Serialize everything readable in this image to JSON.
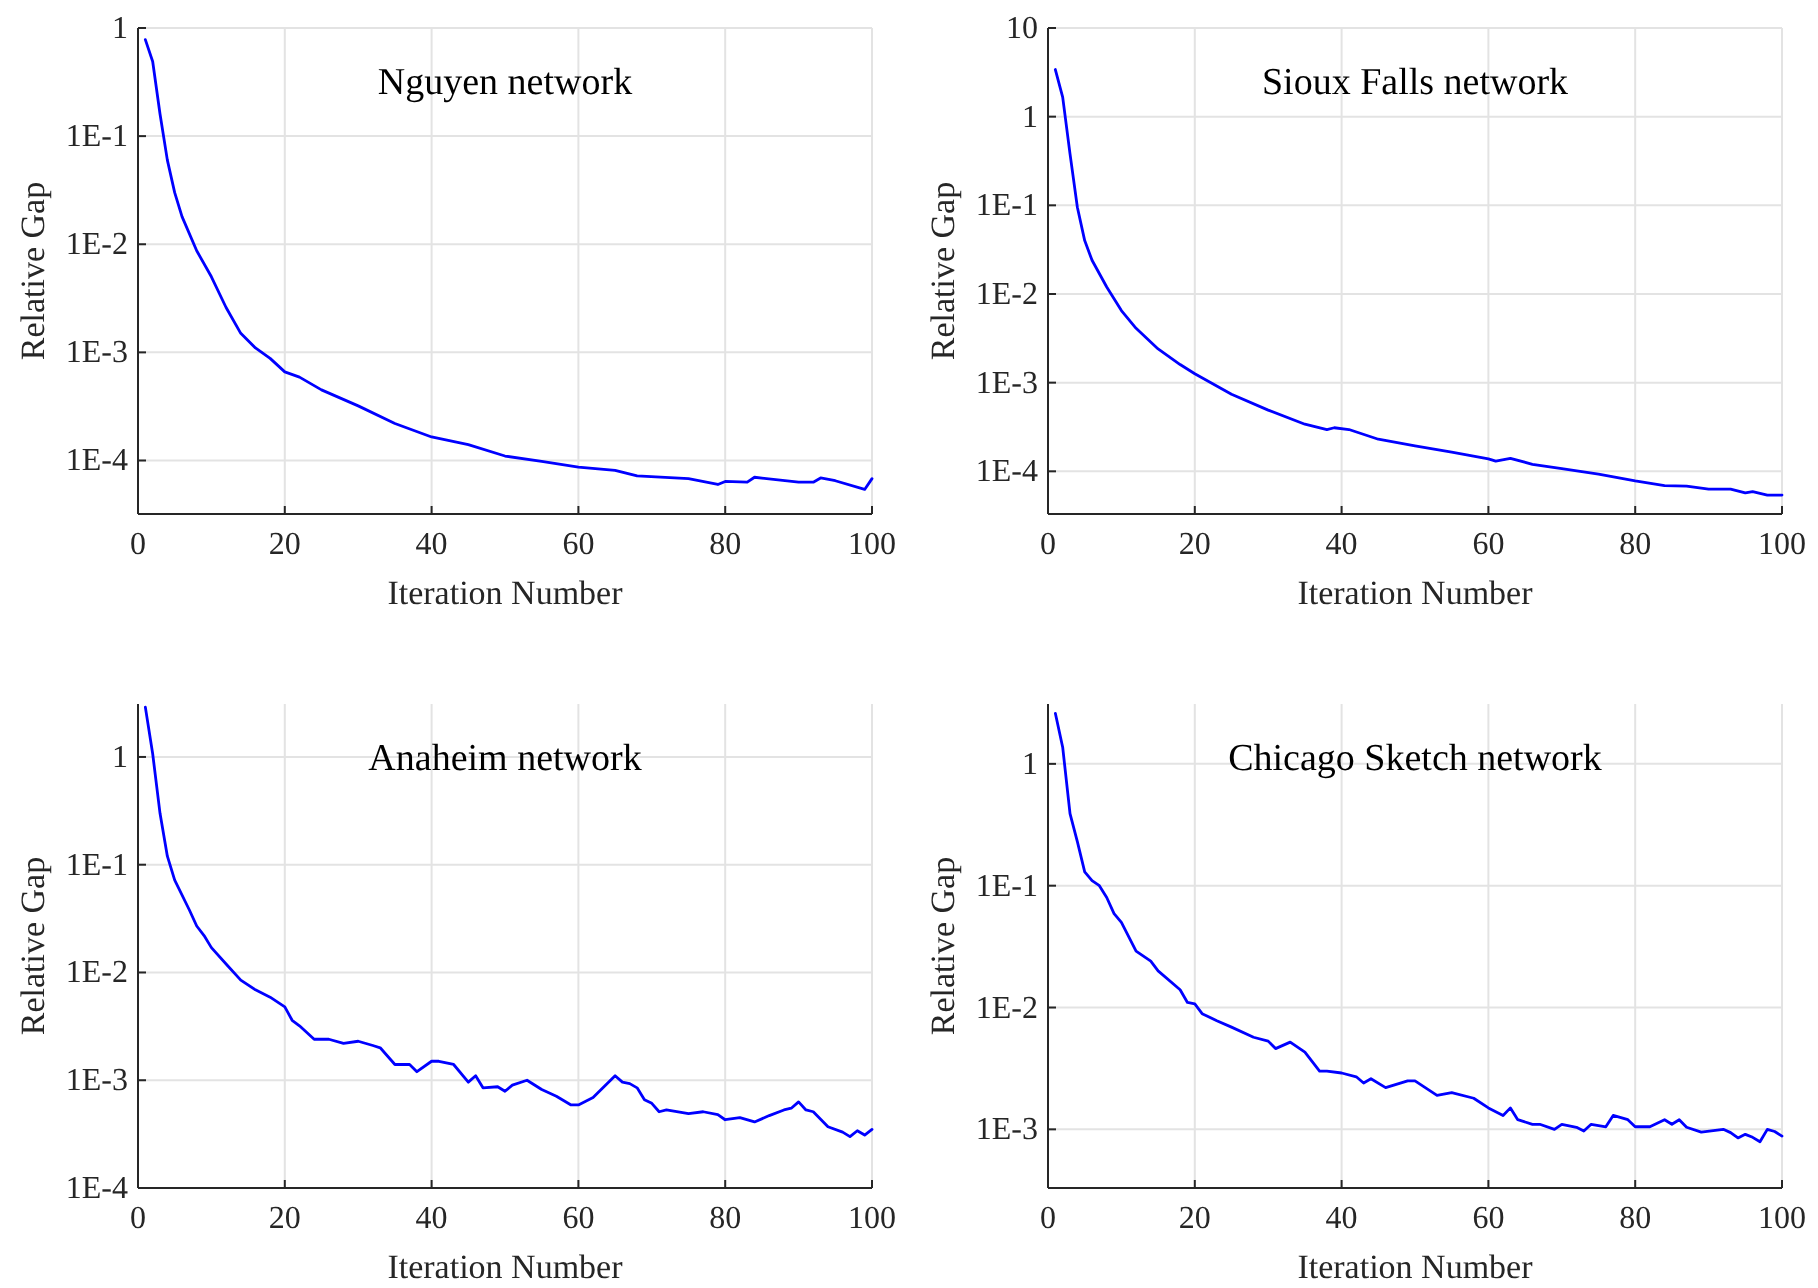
{
  "chart_data": [
    {
      "type": "line",
      "title": "Nguyen network",
      "xlabel": "Iteration Number",
      "ylabel": "Relative Gap",
      "xlim": [
        0,
        100
      ],
      "xticks": [
        0,
        20,
        40,
        60,
        80,
        100
      ],
      "ylim": [
        3.2e-05,
        1
      ],
      "yticks": [
        {
          "value": 0.0001,
          "label": "1E-4"
        },
        {
          "value": 0.001,
          "label": "1E-3"
        },
        {
          "value": 0.01,
          "label": "1E-2"
        },
        {
          "value": 0.1,
          "label": "1E-1"
        },
        {
          "value": 1,
          "label": "1"
        }
      ],
      "log": true,
      "grid": true,
      "x": [
        1,
        2,
        3,
        4,
        5,
        6,
        8,
        10,
        12,
        14,
        16,
        18,
        20,
        22,
        25,
        30,
        35,
        40,
        45,
        50,
        55,
        60,
        65,
        68,
        75,
        79,
        80,
        83,
        84,
        90,
        92,
        93,
        95,
        99,
        100
      ],
      "series": [
        {
          "color": "#0000ff",
          "values": [
            0.78,
            0.49,
            0.16,
            0.06,
            0.03,
            0.018,
            0.0087,
            0.005,
            0.0026,
            0.0015,
            0.0011,
            0.00088,
            0.00066,
            0.00059,
            0.00045,
            0.00032,
            0.00022,
            0.000165,
            0.00014,
            0.00011,
            9.8e-05,
            8.7e-05,
            8.1e-05,
            7.2e-05,
            6.8e-05,
            6e-05,
            6.4e-05,
            6.3e-05,
            7e-05,
            6.3e-05,
            6.3e-05,
            6.9e-05,
            6.5e-05,
            5.4e-05,
            6.8e-05
          ]
        }
      ]
    },
    {
      "type": "line",
      "title": "Sioux Falls network",
      "xlabel": "Iteration Number",
      "ylabel": "Relative Gap",
      "xlim": [
        0,
        100
      ],
      "xticks": [
        0,
        20,
        40,
        60,
        80,
        100
      ],
      "ylim": [
        3.3e-05,
        10
      ],
      "yticks": [
        {
          "value": 0.0001,
          "label": "1E-4"
        },
        {
          "value": 0.001,
          "label": "1E-3"
        },
        {
          "value": 0.01,
          "label": "1E-2"
        },
        {
          "value": 0.1,
          "label": "1E-1"
        },
        {
          "value": 1,
          "label": "1"
        },
        {
          "value": 10,
          "label": "10"
        }
      ],
      "log": true,
      "grid": true,
      "x": [
        1,
        2,
        3,
        4,
        5,
        6,
        8,
        10,
        12,
        15,
        18,
        20,
        25,
        30,
        35,
        38,
        39,
        41,
        45,
        50,
        55,
        60,
        61,
        63,
        66,
        70,
        75,
        80,
        84,
        87,
        90,
        93,
        95,
        96,
        98,
        100
      ],
      "series": [
        {
          "color": "#0000ff",
          "values": [
            3.4,
            1.66,
            0.38,
            0.095,
            0.04,
            0.024,
            0.012,
            0.0065,
            0.0041,
            0.0024,
            0.0016,
            0.00126,
            0.00074,
            0.00049,
            0.00034,
            0.000296,
            0.00031,
            0.000296,
            0.00023,
            0.000194,
            0.000165,
            0.000138,
            0.00013,
            0.00014,
            0.00012,
            0.000107,
            9.3e-05,
            7.8e-05,
            6.9e-05,
            6.8e-05,
            6.3e-05,
            6.3e-05,
            5.7e-05,
            5.9e-05,
            5.4e-05,
            5.4e-05
          ]
        }
      ]
    },
    {
      "type": "line",
      "title": "Anaheim network",
      "xlabel": "Iteration Number",
      "ylabel": "Relative Gap",
      "xlim": [
        0,
        100
      ],
      "xticks": [
        0,
        20,
        40,
        60,
        80,
        100
      ],
      "ylim": [
        0.0001,
        3.1
      ],
      "yticks": [
        {
          "value": 0.0001,
          "label": "1E-4"
        },
        {
          "value": 0.001,
          "label": "1E-3"
        },
        {
          "value": 0.01,
          "label": "1E-2"
        },
        {
          "value": 0.1,
          "label": "1E-1"
        },
        {
          "value": 1,
          "label": "1"
        }
      ],
      "log": true,
      "grid": true,
      "x": [
        1,
        2,
        3,
        4,
        5,
        7,
        8,
        9,
        10,
        12,
        14,
        16,
        18,
        20,
        21,
        22,
        24,
        26,
        28,
        30,
        32,
        33,
        35,
        37,
        38,
        40,
        41,
        43,
        45,
        46,
        47,
        49,
        50,
        51,
        53,
        55,
        57,
        59,
        60,
        62,
        65,
        66,
        67,
        68,
        69,
        70,
        71,
        72,
        75,
        77,
        79,
        80,
        82,
        84,
        86,
        88,
        89,
        90,
        91,
        92,
        94,
        96,
        97,
        98,
        99,
        100
      ],
      "series": [
        {
          "color": "#0000ff",
          "values": [
            2.9,
            1.07,
            0.3,
            0.12,
            0.072,
            0.038,
            0.027,
            0.022,
            0.017,
            0.012,
            0.0085,
            0.0069,
            0.0059,
            0.0048,
            0.0036,
            0.0032,
            0.0024,
            0.0024,
            0.0022,
            0.0023,
            0.0021,
            0.002,
            0.0014,
            0.0014,
            0.0012,
            0.0015,
            0.0015,
            0.0014,
            0.00096,
            0.0011,
            0.00085,
            0.00087,
            0.00079,
            0.0009,
            0.001,
            0.00082,
            0.00071,
            0.00059,
            0.00059,
            0.00069,
            0.0011,
            0.00096,
            0.00093,
            0.00085,
            0.00066,
            0.00061,
            0.00051,
            0.00053,
            0.00049,
            0.00051,
            0.00048,
            0.00043,
            0.00045,
            0.00041,
            0.00047,
            0.00053,
            0.00055,
            0.00063,
            0.00053,
            0.00051,
            0.00037,
            0.00033,
            0.0003,
            0.00034,
            0.00031,
            0.00035
          ]
        }
      ]
    },
    {
      "type": "line",
      "title": "Chicago Sketch network",
      "xlabel": "Iteration Number",
      "ylabel": "Relative Gap",
      "xlim": [
        0,
        100
      ],
      "xticks": [
        0,
        20,
        40,
        60,
        80,
        100
      ],
      "ylim": [
        0.00033,
        3.1
      ],
      "yticks": [
        {
          "value": 0.001,
          "label": "1E-3"
        },
        {
          "value": 0.01,
          "label": "1E-2"
        },
        {
          "value": 0.1,
          "label": "1E-1"
        },
        {
          "value": 1,
          "label": "1"
        }
      ],
      "log": true,
      "grid": true,
      "x": [
        1,
        2,
        3,
        4,
        5,
        6,
        7,
        8,
        9,
        10,
        12,
        14,
        15,
        18,
        19,
        20,
        21,
        23,
        25,
        28,
        30,
        31,
        33,
        35,
        37,
        38,
        40,
        42,
        43,
        44,
        46,
        49,
        50,
        53,
        55,
        58,
        60,
        62,
        63,
        64,
        66,
        67,
        69,
        70,
        72,
        73,
        74,
        76,
        77,
        79,
        80,
        82,
        84,
        85,
        86,
        87,
        89,
        92,
        93,
        94,
        95,
        96,
        97,
        98,
        99,
        100
      ],
      "series": [
        {
          "color": "#0000ff",
          "values": [
            2.6,
            1.37,
            0.39,
            0.23,
            0.13,
            0.11,
            0.1,
            0.08,
            0.059,
            0.05,
            0.029,
            0.024,
            0.02,
            0.014,
            0.011,
            0.0107,
            0.0089,
            0.0078,
            0.0069,
            0.0057,
            0.0053,
            0.0046,
            0.0052,
            0.0043,
            0.003,
            0.003,
            0.0029,
            0.0027,
            0.0024,
            0.0026,
            0.0022,
            0.0025,
            0.0025,
            0.0019,
            0.002,
            0.0018,
            0.0015,
            0.0013,
            0.0015,
            0.0012,
            0.0011,
            0.0011,
            0.001,
            0.0011,
            0.00104,
            0.00097,
            0.0011,
            0.00105,
            0.0013,
            0.0012,
            0.00105,
            0.00105,
            0.0012,
            0.0011,
            0.0012,
            0.00104,
            0.00095,
            0.001,
            0.00094,
            0.00085,
            0.00091,
            0.00086,
            0.00079,
            0.001,
            0.00096,
            0.00088
          ]
        }
      ]
    }
  ]
}
